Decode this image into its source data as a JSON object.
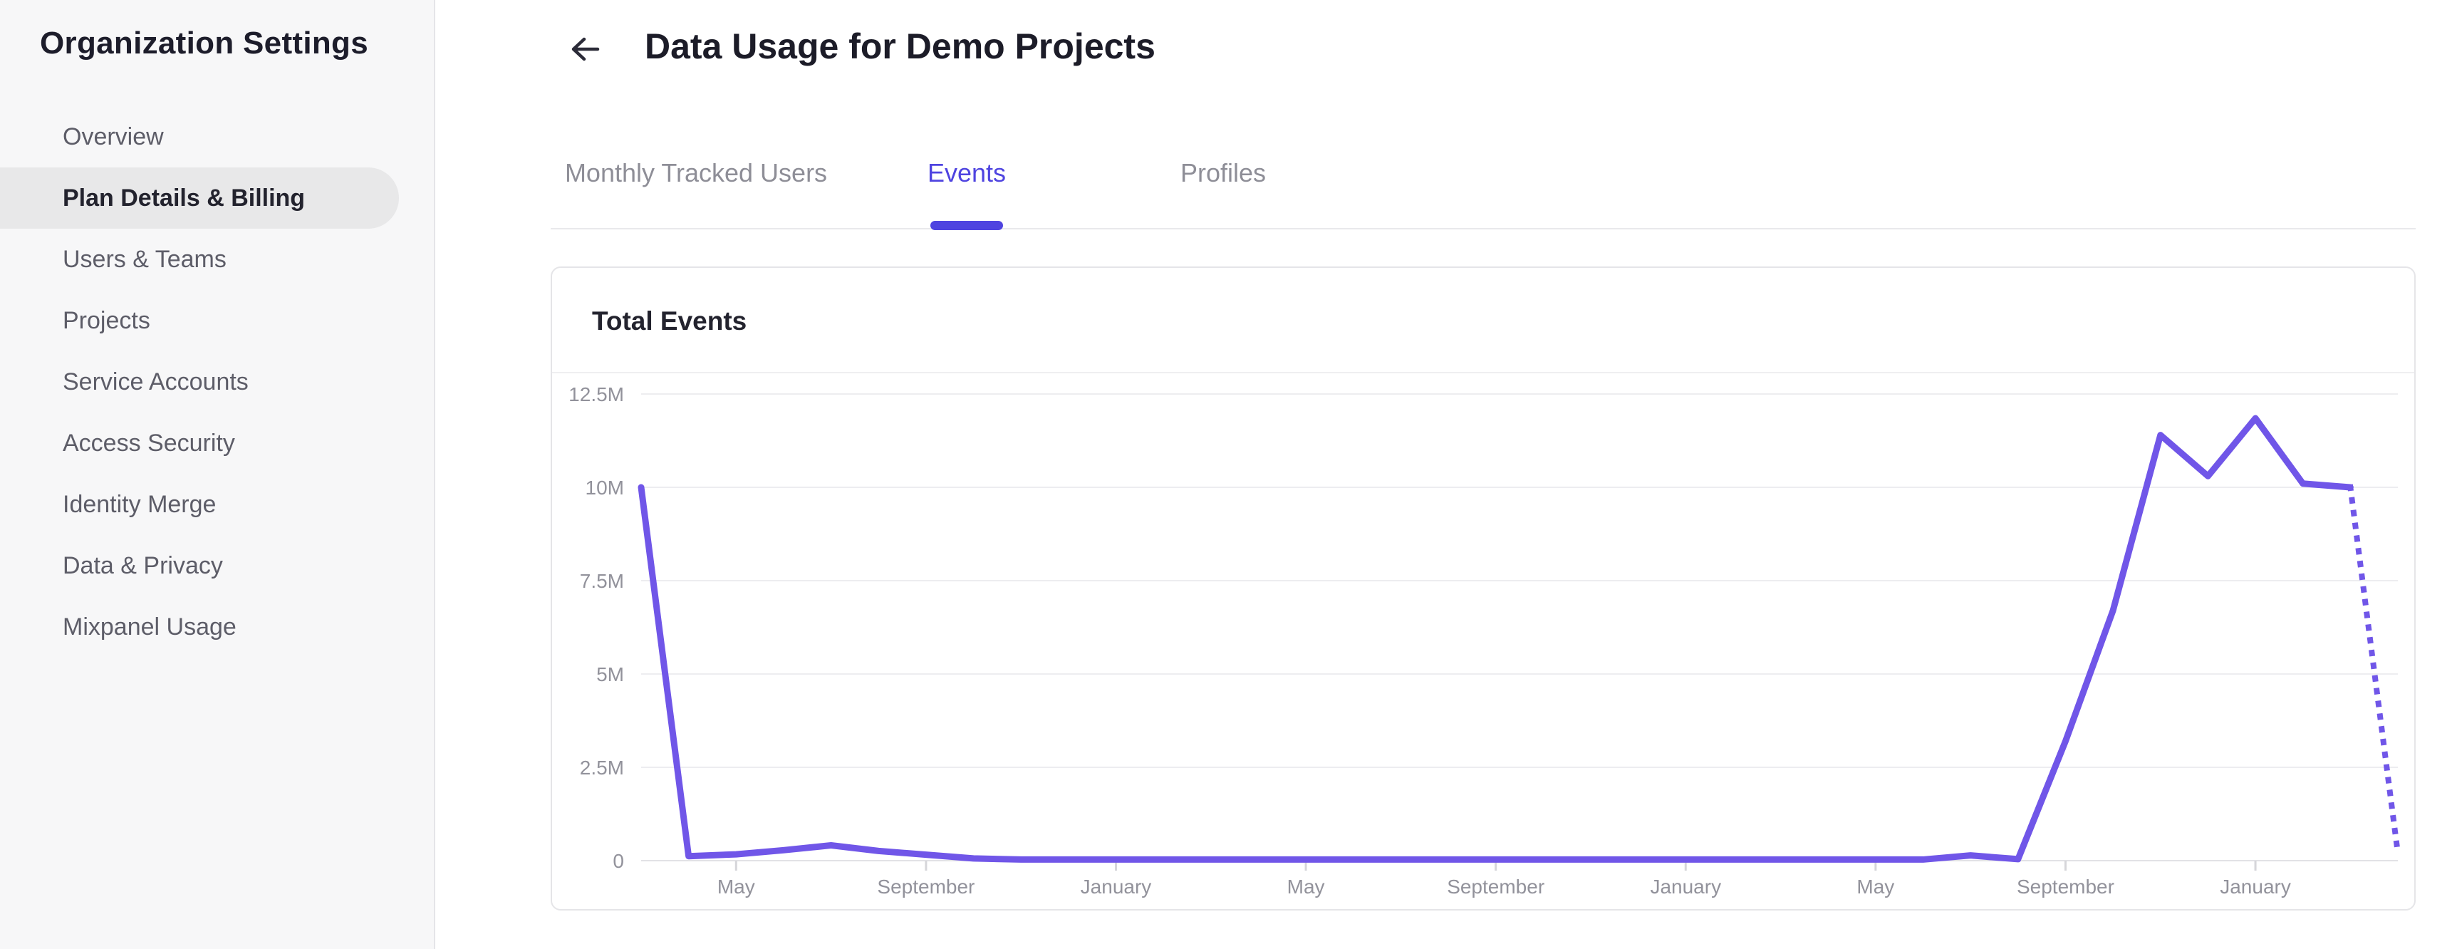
{
  "sidebar": {
    "title": "Organization Settings",
    "items": [
      {
        "label": "Overview",
        "selected": false
      },
      {
        "label": "Plan Details & Billing",
        "selected": true
      },
      {
        "label": "Users & Teams",
        "selected": false
      },
      {
        "label": "Projects",
        "selected": false
      },
      {
        "label": "Service Accounts",
        "selected": false
      },
      {
        "label": "Access Security",
        "selected": false
      },
      {
        "label": "Identity Merge",
        "selected": false
      },
      {
        "label": "Data & Privacy",
        "selected": false
      },
      {
        "label": "Mixpanel Usage",
        "selected": false
      }
    ]
  },
  "header": {
    "title": "Data Usage for Demo Projects"
  },
  "tabs": [
    {
      "label": "Monthly Tracked Users",
      "active": false
    },
    {
      "label": "Events",
      "active": true
    },
    {
      "label": "Profiles",
      "active": false
    }
  ],
  "card": {
    "title": "Total Events"
  },
  "colors": {
    "accent_purple": "#4f44e0",
    "line_purple": "#7056e8",
    "grid": "#ededf0",
    "baseline": "#e2e2e6",
    "tick": "#d6d6da",
    "axis_text": "#92929b"
  },
  "chart_data": {
    "type": "line",
    "title": "Total Events",
    "ylim_events": [
      0,
      12500000
    ],
    "y_tick_labels": [
      "12.5M",
      "10M",
      "7.5M",
      "5M",
      "2.5M",
      "0"
    ],
    "y_tick_values_millions": [
      12.5,
      10,
      7.5,
      5,
      2.5,
      0
    ],
    "x_tick_labels": [
      "May",
      "September",
      "January",
      "May",
      "September",
      "January",
      "May",
      "September",
      "January"
    ],
    "x_tick_indices": [
      2,
      6,
      10,
      14,
      18,
      22,
      26,
      30,
      34
    ],
    "grid": true,
    "legend": "none",
    "series": [
      {
        "name": "Total Events",
        "values_millions": [
          10,
          0.12,
          0.17,
          0.28,
          0.41,
          0.26,
          0.16,
          0.06,
          0.03,
          0.03,
          0.03,
          0.03,
          0.03,
          0.03,
          0.03,
          0.03,
          0.03,
          0.03,
          0.03,
          0.03,
          0.03,
          0.03,
          0.03,
          0.03,
          0.03,
          0.03,
          0.03,
          0.03,
          0.14,
          0.04,
          3.2,
          6.7,
          11.4,
          10.3,
          11.85,
          10.1,
          10.0,
          0.2
        ],
        "dotted_from_index": 36
      }
    ]
  }
}
